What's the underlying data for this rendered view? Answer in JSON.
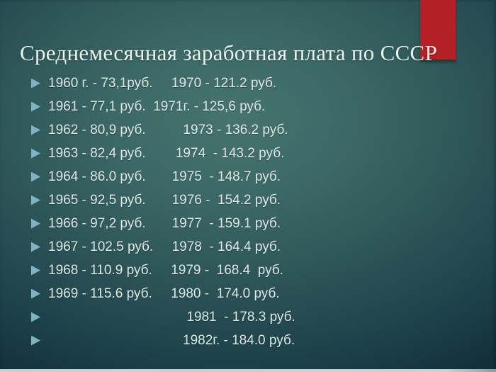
{
  "slide": {
    "title": "Среднемесячная заработная плата по СССР",
    "items": [
      "1960 г. - 73,1руб.     1970 - 121.2 руб.",
      "1961 - 77,1 руб.  1971г. - 125,6 руб.",
      "1962 - 80,9 руб.          1973 - 136.2 руб.",
      "1963 - 82,4 руб.        1974  - 143.2 руб.",
      "1964 - 86.0 руб.       1975  - 148.7 руб.",
      "1965 - 92,5 руб.       1976 -  154.2 руб.",
      "1966 - 97,2 руб.       1977  - 159.1 руб.",
      "1967 - 102.5 руб.     1978  - 164.4 руб.",
      "1968 - 110.9 руб.     1979 -  168.4  руб.",
      "1969 - 115.6 руб.     1980 -  174.0 руб.",
      "                                     1981  - 178.3 руб.",
      "                                    1982г. - 184.0 руб."
    ],
    "colors": {
      "accent_red": "#b32025",
      "bullet_triangle": "#7fb3c2",
      "title_text": "#eaf4f1",
      "body_text": "#dde9e8",
      "background_center": "#47736e",
      "background_edge": "#142f3c",
      "bottom_strip": "#c3d3d5"
    }
  }
}
